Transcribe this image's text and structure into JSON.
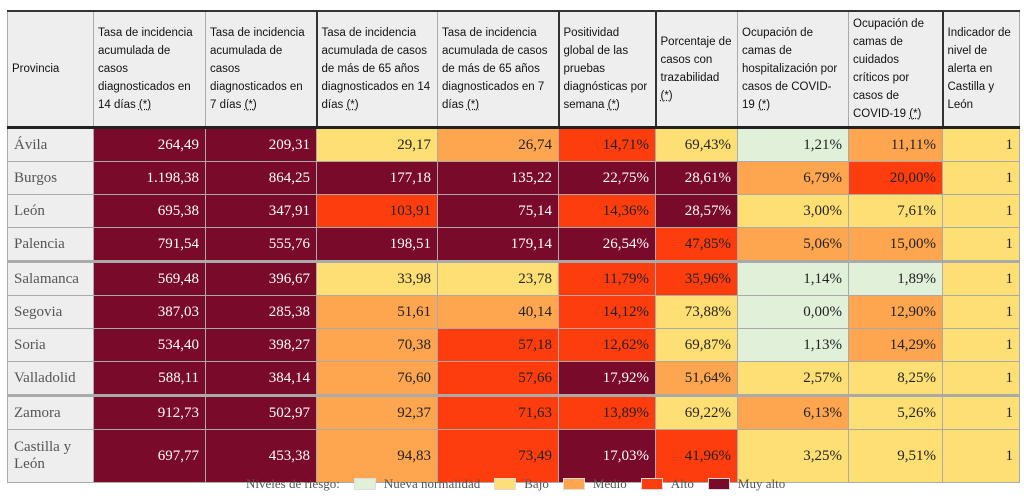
{
  "colors": {
    "nueva": "#e1f0d8",
    "bajo": "#fedf73",
    "medio": "#fda54f",
    "alto": "#fd3d0e",
    "muy_alto": "#7a0a2a"
  },
  "headers": [
    {
      "text": "Provincia",
      "ast": ""
    },
    {
      "text": "Tasa de incidencia acumulada de casos diagnosticados en 14 días ",
      "ast": "(*)"
    },
    {
      "text": "Tasa de incidencia acumulada de casos diagnosticados en 7 días ",
      "ast": "(*)"
    },
    {
      "text": "Tasa de incidencia acumulada de casos de más de 65 años diagnosticados en 14 días ",
      "ast": "(*)"
    },
    {
      "text": "Tasa de incidencia acumulada de casos de más de 65 años diagnosticados en 7 días ",
      "ast": "(*)"
    },
    {
      "text": "Positividad global de las pruebas diagnósticas por semana ",
      "ast": "(*)"
    },
    {
      "text": "Porcentaje de casos con trazabilidad ",
      "ast": "(*)"
    },
    {
      "text": "Ocupación de camas de hospitalización por casos de COVID-19 ",
      "ast": "(*)"
    },
    {
      "text": "Ocupación de camas de cuidados críticos por casos de COVID-19 ",
      "ast": "(*)"
    },
    {
      "text": "Indicador de nivel de alerta en Castilla y León",
      "ast": ""
    }
  ],
  "rows": [
    {
      "provincia": "Ávila",
      "values": [
        "264,49",
        "209,31",
        "29,17",
        "26,74",
        "14,71%",
        "69,43%",
        "1,21%",
        "11,11%",
        "1"
      ],
      "levels": [
        "muy_alto",
        "muy_alto",
        "bajo",
        "medio",
        "alto",
        "bajo",
        "nueva",
        "medio",
        "bajo"
      ]
    },
    {
      "provincia": "Burgos",
      "values": [
        "1.198,38",
        "864,25",
        "177,18",
        "135,22",
        "22,75%",
        "28,61%",
        "6,79%",
        "20,00%",
        "1"
      ],
      "levels": [
        "muy_alto",
        "muy_alto",
        "muy_alto",
        "muy_alto",
        "muy_alto",
        "muy_alto",
        "medio",
        "alto",
        "bajo"
      ]
    },
    {
      "provincia": "León",
      "values": [
        "695,38",
        "347,91",
        "103,91",
        "75,14",
        "14,36%",
        "28,57%",
        "3,00%",
        "7,61%",
        "1"
      ],
      "levels": [
        "muy_alto",
        "muy_alto",
        "alto",
        "muy_alto",
        "alto",
        "muy_alto",
        "bajo",
        "bajo",
        "bajo"
      ]
    },
    {
      "provincia": "Palencia",
      "values": [
        "791,54",
        "555,76",
        "198,51",
        "179,14",
        "26,54%",
        "47,85%",
        "5,06%",
        "15,00%",
        "1"
      ],
      "levels": [
        "muy_alto",
        "muy_alto",
        "muy_alto",
        "muy_alto",
        "muy_alto",
        "alto",
        "medio",
        "medio",
        "bajo"
      ]
    },
    {
      "provincia": "Salamanca",
      "values": [
        "569,48",
        "396,67",
        "33,98",
        "23,78",
        "11,79%",
        "35,96%",
        "1,14%",
        "1,89%",
        "1"
      ],
      "levels": [
        "muy_alto",
        "muy_alto",
        "bajo",
        "bajo",
        "alto",
        "alto",
        "nueva",
        "nueva",
        "bajo"
      ]
    },
    {
      "provincia": "Segovia",
      "values": [
        "387,03",
        "285,38",
        "51,61",
        "40,14",
        "14,12%",
        "73,88%",
        "0,00%",
        "12,90%",
        "1"
      ],
      "levels": [
        "muy_alto",
        "muy_alto",
        "medio",
        "medio",
        "alto",
        "bajo",
        "nueva",
        "medio",
        "bajo"
      ]
    },
    {
      "provincia": "Soria",
      "values": [
        "534,40",
        "398,27",
        "70,38",
        "57,18",
        "12,62%",
        "69,87%",
        "1,13%",
        "14,29%",
        "1"
      ],
      "levels": [
        "muy_alto",
        "muy_alto",
        "medio",
        "alto",
        "alto",
        "bajo",
        "nueva",
        "medio",
        "bajo"
      ]
    },
    {
      "provincia": "Valladolid",
      "values": [
        "588,11",
        "384,14",
        "76,60",
        "57,66",
        "17,92%",
        "51,64%",
        "2,57%",
        "8,25%",
        "1"
      ],
      "levels": [
        "muy_alto",
        "muy_alto",
        "medio",
        "alto",
        "muy_alto",
        "medio",
        "bajo",
        "bajo",
        "bajo"
      ]
    },
    {
      "provincia": "Zamora",
      "values": [
        "912,73",
        "502,97",
        "92,37",
        "71,63",
        "13,89%",
        "69,22%",
        "6,13%",
        "5,26%",
        "1"
      ],
      "levels": [
        "muy_alto",
        "muy_alto",
        "medio",
        "alto",
        "alto",
        "bajo",
        "medio",
        "bajo",
        "bajo"
      ]
    },
    {
      "provincia": "Castilla y León",
      "values": [
        "697,77",
        "453,38",
        "94,83",
        "73,49",
        "17,03%",
        "41,96%",
        "3,25%",
        "9,51%",
        "1"
      ],
      "levels": [
        "muy_alto",
        "muy_alto",
        "medio",
        "alto",
        "muy_alto",
        "alto",
        "bajo",
        "bajo",
        "bajo"
      ]
    }
  ],
  "legend": {
    "title": "Niveles de riesgo:",
    "items": [
      {
        "key": "nueva",
        "label": "Nueva normalidad"
      },
      {
        "key": "bajo",
        "label": "Bajo"
      },
      {
        "key": "medio",
        "label": "Medio"
      },
      {
        "key": "alto",
        "label": "Alto"
      },
      {
        "key": "muy_alto",
        "label": "Muy alto"
      }
    ]
  }
}
